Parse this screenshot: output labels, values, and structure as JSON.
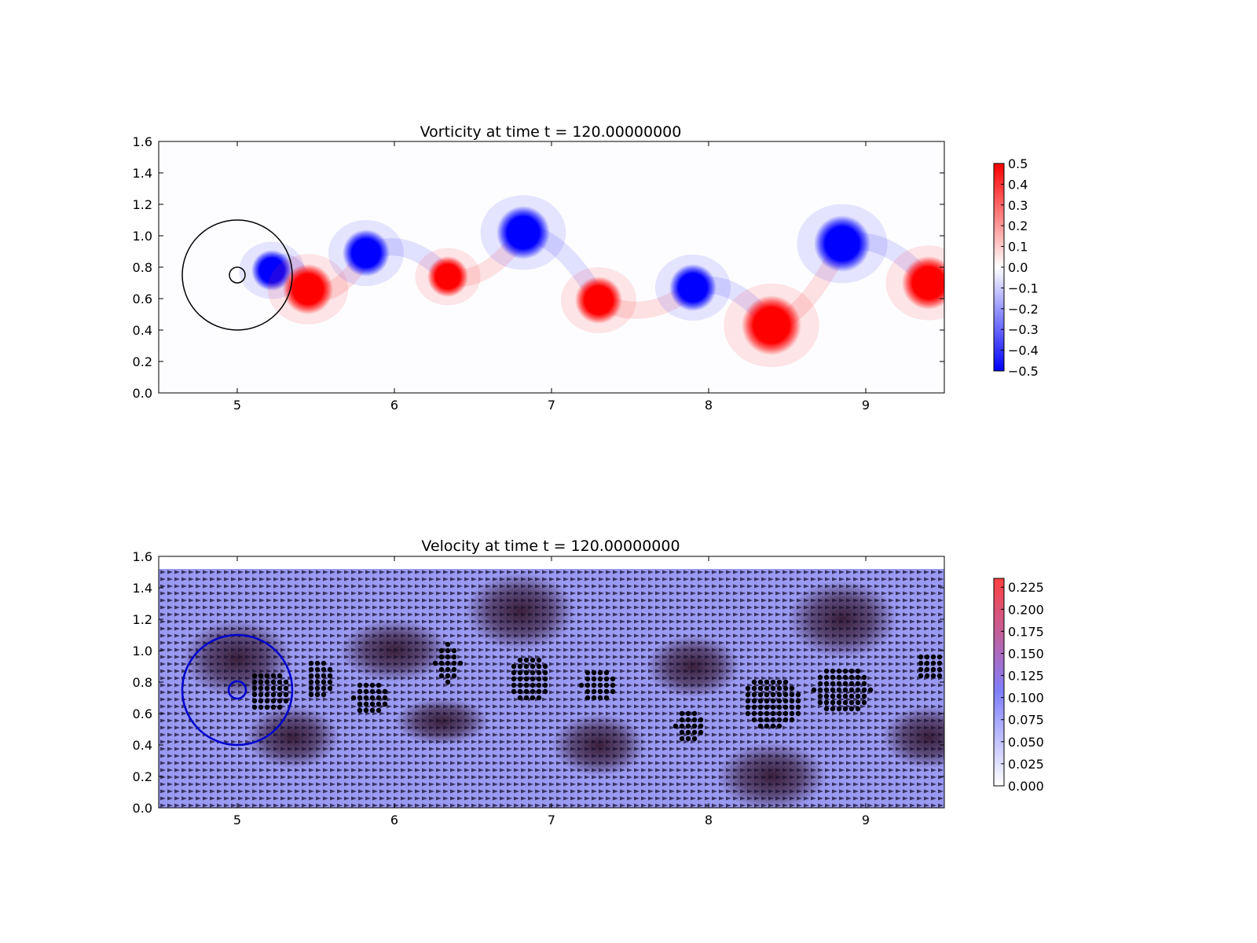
{
  "chart_data": [
    {
      "type": "heatmap",
      "title": "Vorticity at time t =   120.00000000",
      "xlabel": "",
      "ylabel": "",
      "xlim": [
        4.5,
        9.5
      ],
      "ylim": [
        0.0,
        1.6
      ],
      "xticks": [
        "5",
        "6",
        "7",
        "8",
        "9"
      ],
      "yticks": [
        "0.0",
        "0.2",
        "0.4",
        "0.6",
        "0.8",
        "1.0",
        "1.2",
        "1.4",
        "1.6"
      ],
      "colormap": {
        "low": "#0000ff",
        "mid": "#ffffff",
        "high": "#ff0000"
      },
      "colorbar": {
        "range": [
          -0.5,
          0.5
        ],
        "ticks": [
          "0.5",
          "0.4",
          "0.3",
          "0.2",
          "0.1",
          "0.0",
          "−0.1",
          "−0.2",
          "−0.3",
          "−0.4",
          "−0.5"
        ]
      },
      "vortices": [
        {
          "x": 5.22,
          "y": 0.78,
          "r": 0.13,
          "sign": -1
        },
        {
          "x": 5.45,
          "y": 0.66,
          "r": 0.16,
          "sign": 1
        },
        {
          "x": 5.82,
          "y": 0.89,
          "r": 0.15,
          "sign": -1
        },
        {
          "x": 6.34,
          "y": 0.74,
          "r": 0.13,
          "sign": 1
        },
        {
          "x": 6.82,
          "y": 1.02,
          "r": 0.17,
          "sign": -1
        },
        {
          "x": 7.3,
          "y": 0.59,
          "r": 0.15,
          "sign": 1
        },
        {
          "x": 7.9,
          "y": 0.67,
          "r": 0.15,
          "sign": -1
        },
        {
          "x": 8.4,
          "y": 0.43,
          "r": 0.19,
          "sign": 1
        },
        {
          "x": 8.85,
          "y": 0.95,
          "r": 0.18,
          "sign": -1
        },
        {
          "x": 9.4,
          "y": 0.7,
          "r": 0.17,
          "sign": 1
        }
      ],
      "circles": [
        {
          "x": 5.0,
          "y": 0.75,
          "r": 0.35,
          "color": "#000000"
        },
        {
          "x": 5.0,
          "y": 0.75,
          "r": 0.05,
          "color": "#000000"
        }
      ]
    },
    {
      "type": "heatmap",
      "title": "Velocity at time t =   120.00000000",
      "xlabel": "",
      "ylabel": "",
      "xlim": [
        4.5,
        9.5
      ],
      "ylim": [
        0.0,
        1.6
      ],
      "field_ylim": [
        0.0,
        1.52
      ],
      "xticks": [
        "5",
        "6",
        "7",
        "8",
        "9"
      ],
      "yticks": [
        "0.0",
        "0.2",
        "0.4",
        "0.6",
        "0.8",
        "1.0",
        "1.2",
        "1.4",
        "1.6"
      ],
      "colormap": {
        "low": "#ffffff",
        "mid": "#8080ff",
        "high": "#ff4040"
      },
      "colorbar": {
        "range": [
          0.0,
          0.235
        ],
        "ticks": [
          "0.225",
          "0.200",
          "0.175",
          "0.150",
          "0.125",
          "0.100",
          "0.075",
          "0.050",
          "0.025",
          "0.000"
        ]
      },
      "dark_regions": [
        {
          "x": 5.0,
          "y": 0.95,
          "rx": 0.35,
          "ry": 0.25
        },
        {
          "x": 5.35,
          "y": 0.45,
          "rx": 0.3,
          "ry": 0.2
        },
        {
          "x": 6.0,
          "y": 1.0,
          "rx": 0.35,
          "ry": 0.2
        },
        {
          "x": 6.3,
          "y": 0.55,
          "rx": 0.3,
          "ry": 0.15
        },
        {
          "x": 6.8,
          "y": 1.25,
          "rx": 0.35,
          "ry": 0.25
        },
        {
          "x": 7.3,
          "y": 0.4,
          "rx": 0.3,
          "ry": 0.2
        },
        {
          "x": 7.9,
          "y": 0.9,
          "rx": 0.3,
          "ry": 0.2
        },
        {
          "x": 8.4,
          "y": 0.2,
          "rx": 0.35,
          "ry": 0.22
        },
        {
          "x": 8.85,
          "y": 1.2,
          "rx": 0.35,
          "ry": 0.25
        },
        {
          "x": 9.4,
          "y": 0.45,
          "rx": 0.3,
          "ry": 0.2
        }
      ],
      "dot_clusters": [
        {
          "x": 5.2,
          "y": 0.74,
          "rx": 0.13,
          "ry": 0.14
        },
        {
          "x": 5.52,
          "y": 0.82,
          "rx": 0.09,
          "ry": 0.14
        },
        {
          "x": 5.85,
          "y": 0.7,
          "rx": 0.11,
          "ry": 0.12
        },
        {
          "x": 6.34,
          "y": 0.92,
          "rx": 0.08,
          "ry": 0.12
        },
        {
          "x": 6.86,
          "y": 0.83,
          "rx": 0.14,
          "ry": 0.15
        },
        {
          "x": 7.3,
          "y": 0.78,
          "rx": 0.11,
          "ry": 0.12
        },
        {
          "x": 7.88,
          "y": 0.52,
          "rx": 0.09,
          "ry": 0.12
        },
        {
          "x": 8.4,
          "y": 0.67,
          "rx": 0.19,
          "ry": 0.17
        },
        {
          "x": 8.85,
          "y": 0.75,
          "rx": 0.18,
          "ry": 0.16
        },
        {
          "x": 9.4,
          "y": 0.9,
          "rx": 0.09,
          "ry": 0.1
        }
      ],
      "circles": [
        {
          "x": 5.0,
          "y": 0.75,
          "r": 0.35,
          "color": "#0000cc"
        },
        {
          "x": 5.0,
          "y": 0.75,
          "r": 0.055,
          "color": "#0000cc"
        }
      ]
    }
  ]
}
